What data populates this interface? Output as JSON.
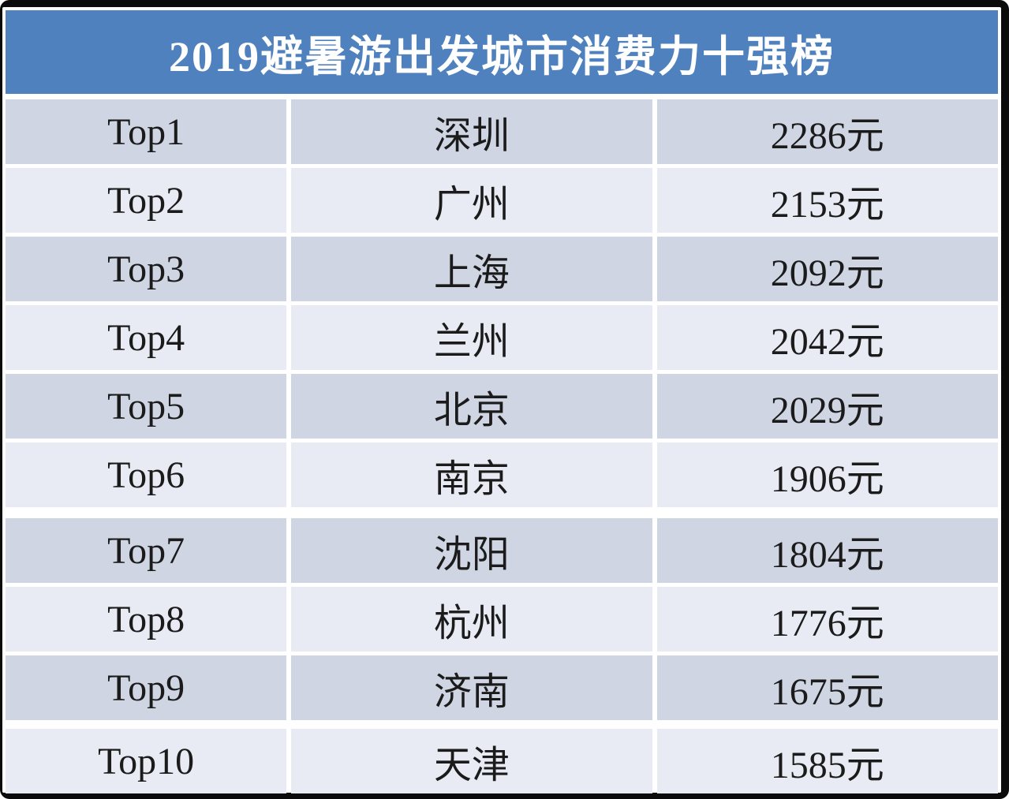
{
  "title": "2019避暑游出发城市消费力十强榜",
  "unit": "元",
  "colors": {
    "header_bg": "#4e81bd",
    "header_text": "#ffffff",
    "row_dark": "#cfd5e3",
    "row_light": "#e8ebf3",
    "frame": "#0b0b0b",
    "gap": "#ffffff",
    "text": "#1b1b1b"
  },
  "chart_data": {
    "type": "table",
    "title": "2019避暑游出发城市消费力十强榜",
    "unit": "元",
    "rows": [
      {
        "rank": "Top1",
        "city": "深圳",
        "value": 2286,
        "value_label": "2286元"
      },
      {
        "rank": "Top2",
        "city": "广州",
        "value": 2153,
        "value_label": "2153元"
      },
      {
        "rank": "Top3",
        "city": "上海",
        "value": 2092,
        "value_label": "2092元"
      },
      {
        "rank": "Top4",
        "city": "兰州",
        "value": 2042,
        "value_label": "2042元"
      },
      {
        "rank": "Top5",
        "city": "北京",
        "value": 2029,
        "value_label": "2029元"
      },
      {
        "rank": "Top6",
        "city": "南京",
        "value": 1906,
        "value_label": "1906元"
      },
      {
        "rank": "Top7",
        "city": "沈阳",
        "value": 1804,
        "value_label": "1804元"
      },
      {
        "rank": "Top8",
        "city": "杭州",
        "value": 1776,
        "value_label": "1776元"
      },
      {
        "rank": "Top9",
        "city": "济南",
        "value": 1675,
        "value_label": "1675元"
      },
      {
        "rank": "Top10",
        "city": "天津",
        "value": 1585,
        "value_label": "1585元"
      }
    ]
  }
}
